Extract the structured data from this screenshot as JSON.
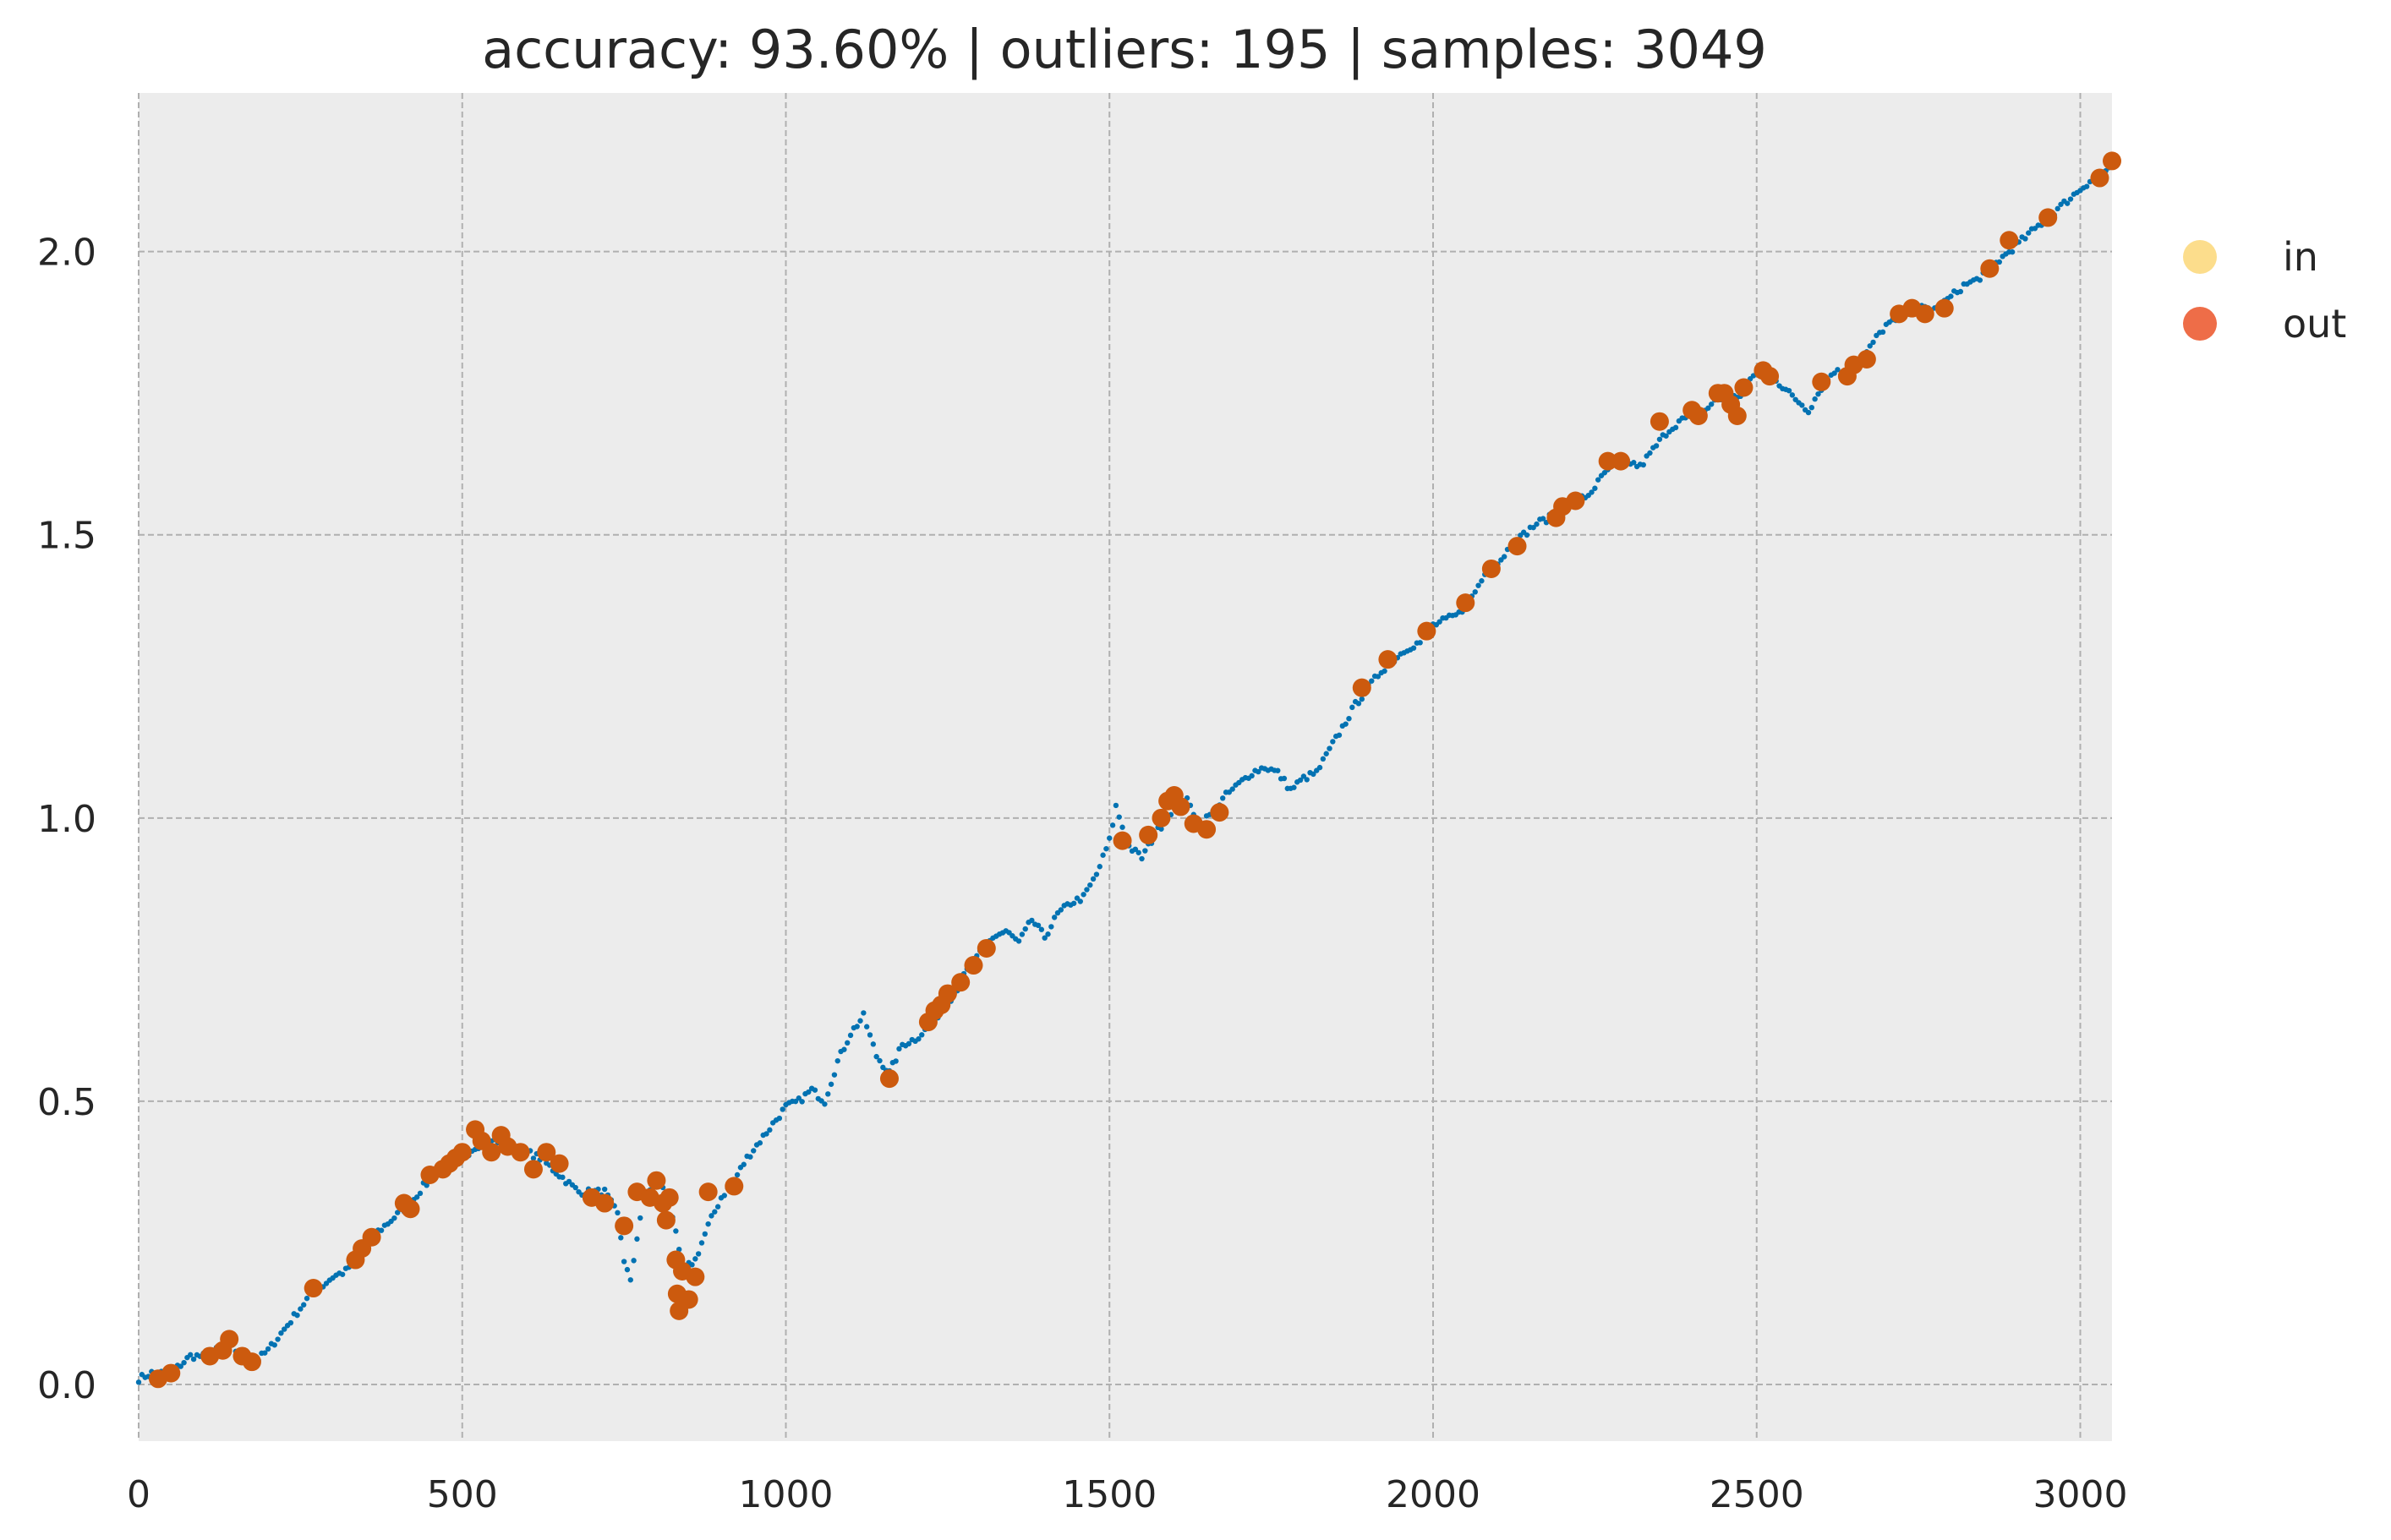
{
  "chart_data": {
    "type": "scatter",
    "title": "accuracy: 93.60% | outliers: 195 | samples: 3049",
    "xlabel": "",
    "ylabel": "",
    "xlim": [
      0,
      3049
    ],
    "ylim": [
      -0.1,
      2.28
    ],
    "x_ticks": [
      0,
      500,
      1000,
      1500,
      2000,
      2500,
      3000
    ],
    "y_ticks": [
      0.0,
      0.5,
      1.0,
      1.5,
      2.0
    ],
    "x_tick_labels": [
      "0",
      "500",
      "1000",
      "1500",
      "2000",
      "2500",
      "3000"
    ],
    "y_tick_labels": [
      "0.0",
      "0.5",
      "1.0",
      "1.5",
      "2.0"
    ],
    "grid": true,
    "legend_position": "outside-right-top",
    "series": [
      {
        "name": "in",
        "legend_color": "#fcdd8c",
        "point_color": "#0372b2",
        "marker": "small-dot",
        "points": [
          [
            0,
            0.01
          ],
          [
            20,
            0.02
          ],
          [
            40,
            0.02
          ],
          [
            60,
            0.03
          ],
          [
            80,
            0.05
          ],
          [
            100,
            0.05
          ],
          [
            120,
            0.06
          ],
          [
            140,
            0.07
          ],
          [
            160,
            0.05
          ],
          [
            180,
            0.04
          ],
          [
            200,
            0.06
          ],
          [
            220,
            0.09
          ],
          [
            240,
            0.12
          ],
          [
            260,
            0.15
          ],
          [
            280,
            0.17
          ],
          [
            300,
            0.19
          ],
          [
            320,
            0.2
          ],
          [
            340,
            0.23
          ],
          [
            360,
            0.26
          ],
          [
            380,
            0.28
          ],
          [
            400,
            0.3
          ],
          [
            420,
            0.32
          ],
          [
            440,
            0.35
          ],
          [
            460,
            0.37
          ],
          [
            480,
            0.38
          ],
          [
            500,
            0.4
          ],
          [
            520,
            0.42
          ],
          [
            540,
            0.43
          ],
          [
            560,
            0.43
          ],
          [
            580,
            0.42
          ],
          [
            600,
            0.41
          ],
          [
            620,
            0.4
          ],
          [
            640,
            0.38
          ],
          [
            660,
            0.36
          ],
          [
            680,
            0.34
          ],
          [
            700,
            0.34
          ],
          [
            720,
            0.34
          ],
          [
            740,
            0.3
          ],
          [
            750,
            0.22
          ],
          [
            760,
            0.18
          ],
          [
            770,
            0.26
          ],
          [
            780,
            0.33
          ],
          [
            800,
            0.36
          ],
          [
            820,
            0.33
          ],
          [
            840,
            0.2
          ],
          [
            860,
            0.22
          ],
          [
            880,
            0.28
          ],
          [
            900,
            0.33
          ],
          [
            920,
            0.36
          ],
          [
            940,
            0.4
          ],
          [
            960,
            0.43
          ],
          [
            980,
            0.46
          ],
          [
            1000,
            0.49
          ],
          [
            1020,
            0.5
          ],
          [
            1040,
            0.52
          ],
          [
            1060,
            0.5
          ],
          [
            1080,
            0.57
          ],
          [
            1100,
            0.62
          ],
          [
            1120,
            0.65
          ],
          [
            1140,
            0.58
          ],
          [
            1160,
            0.55
          ],
          [
            1180,
            0.6
          ],
          [
            1200,
            0.61
          ],
          [
            1220,
            0.63
          ],
          [
            1240,
            0.66
          ],
          [
            1260,
            0.69
          ],
          [
            1280,
            0.73
          ],
          [
            1300,
            0.76
          ],
          [
            1320,
            0.79
          ],
          [
            1340,
            0.8
          ],
          [
            1360,
            0.78
          ],
          [
            1380,
            0.82
          ],
          [
            1400,
            0.79
          ],
          [
            1420,
            0.83
          ],
          [
            1440,
            0.85
          ],
          [
            1460,
            0.86
          ],
          [
            1480,
            0.9
          ],
          [
            1500,
            0.96
          ],
          [
            1510,
            1.02
          ],
          [
            1530,
            0.95
          ],
          [
            1550,
            0.93
          ],
          [
            1570,
            0.97
          ],
          [
            1600,
            1.02
          ],
          [
            1620,
            1.03
          ],
          [
            1640,
            0.99
          ],
          [
            1660,
            1.01
          ],
          [
            1680,
            1.04
          ],
          [
            1700,
            1.06
          ],
          [
            1720,
            1.08
          ],
          [
            1740,
            1.09
          ],
          [
            1760,
            1.08
          ],
          [
            1780,
            1.05
          ],
          [
            1800,
            1.07
          ],
          [
            1820,
            1.08
          ],
          [
            1840,
            1.12
          ],
          [
            1860,
            1.16
          ],
          [
            1880,
            1.2
          ],
          [
            1900,
            1.23
          ],
          [
            1920,
            1.26
          ],
          [
            1940,
            1.28
          ],
          [
            1960,
            1.3
          ],
          [
            1980,
            1.31
          ],
          [
            2000,
            1.34
          ],
          [
            2020,
            1.35
          ],
          [
            2040,
            1.36
          ],
          [
            2060,
            1.39
          ],
          [
            2080,
            1.43
          ],
          [
            2100,
            1.45
          ],
          [
            2120,
            1.48
          ],
          [
            2140,
            1.5
          ],
          [
            2160,
            1.52
          ],
          [
            2180,
            1.53
          ],
          [
            2200,
            1.54
          ],
          [
            2220,
            1.56
          ],
          [
            2240,
            1.57
          ],
          [
            2260,
            1.6
          ],
          [
            2280,
            1.63
          ],
          [
            2300,
            1.63
          ],
          [
            2320,
            1.62
          ],
          [
            2340,
            1.65
          ],
          [
            2360,
            1.68
          ],
          [
            2380,
            1.7
          ],
          [
            2400,
            1.71
          ],
          [
            2420,
            1.72
          ],
          [
            2440,
            1.74
          ],
          [
            2460,
            1.74
          ],
          [
            2480,
            1.75
          ],
          [
            2500,
            1.79
          ],
          [
            2520,
            1.79
          ],
          [
            2540,
            1.76
          ],
          [
            2560,
            1.74
          ],
          [
            2580,
            1.72
          ],
          [
            2600,
            1.76
          ],
          [
            2620,
            1.79
          ],
          [
            2640,
            1.78
          ],
          [
            2660,
            1.8
          ],
          [
            2680,
            1.84
          ],
          [
            2700,
            1.87
          ],
          [
            2720,
            1.88
          ],
          [
            2740,
            1.9
          ],
          [
            2760,
            1.9
          ],
          [
            2780,
            1.9
          ],
          [
            2800,
            1.92
          ],
          [
            2820,
            1.94
          ],
          [
            2840,
            1.95
          ],
          [
            2860,
            1.97
          ],
          [
            2880,
            1.99
          ],
          [
            2900,
            2.01
          ],
          [
            2920,
            2.03
          ],
          [
            2940,
            2.05
          ],
          [
            2960,
            2.07
          ],
          [
            2980,
            2.09
          ],
          [
            3000,
            2.11
          ],
          [
            3020,
            2.13
          ],
          [
            3049,
            2.15
          ]
        ]
      },
      {
        "name": "out",
        "legend_color": "#ee6d48",
        "point_color": "#cc5a0e",
        "marker": "large-dot",
        "points": [
          [
            30,
            0.01
          ],
          [
            50,
            0.02
          ],
          [
            110,
            0.05
          ],
          [
            130,
            0.06
          ],
          [
            140,
            0.08
          ],
          [
            160,
            0.05
          ],
          [
            175,
            0.04
          ],
          [
            270,
            0.17
          ],
          [
            335,
            0.22
          ],
          [
            345,
            0.24
          ],
          [
            360,
            0.26
          ],
          [
            410,
            0.32
          ],
          [
            420,
            0.31
          ],
          [
            450,
            0.37
          ],
          [
            470,
            0.38
          ],
          [
            480,
            0.39
          ],
          [
            490,
            0.4
          ],
          [
            500,
            0.41
          ],
          [
            520,
            0.45
          ],
          [
            530,
            0.43
          ],
          [
            545,
            0.41
          ],
          [
            560,
            0.44
          ],
          [
            570,
            0.42
          ],
          [
            590,
            0.41
          ],
          [
            610,
            0.38
          ],
          [
            630,
            0.41
          ],
          [
            650,
            0.39
          ],
          [
            700,
            0.33
          ],
          [
            720,
            0.32
          ],
          [
            750,
            0.28
          ],
          [
            770,
            0.34
          ],
          [
            790,
            0.33
          ],
          [
            800,
            0.36
          ],
          [
            810,
            0.32
          ],
          [
            815,
            0.29
          ],
          [
            820,
            0.33
          ],
          [
            830,
            0.22
          ],
          [
            832,
            0.16
          ],
          [
            835,
            0.13
          ],
          [
            840,
            0.2
          ],
          [
            850,
            0.15
          ],
          [
            860,
            0.19
          ],
          [
            880,
            0.34
          ],
          [
            920,
            0.35
          ],
          [
            1160,
            0.54
          ],
          [
            1220,
            0.64
          ],
          [
            1230,
            0.66
          ],
          [
            1240,
            0.67
          ],
          [
            1250,
            0.69
          ],
          [
            1270,
            0.71
          ],
          [
            1290,
            0.74
          ],
          [
            1310,
            0.77
          ],
          [
            1520,
            0.96
          ],
          [
            1560,
            0.97
          ],
          [
            1580,
            1.0
          ],
          [
            1590,
            1.03
          ],
          [
            1600,
            1.04
          ],
          [
            1610,
            1.02
          ],
          [
            1630,
            0.99
          ],
          [
            1650,
            0.98
          ],
          [
            1670,
            1.01
          ],
          [
            1890,
            1.23
          ],
          [
            1930,
            1.28
          ],
          [
            1990,
            1.33
          ],
          [
            2050,
            1.38
          ],
          [
            2090,
            1.44
          ],
          [
            2130,
            1.48
          ],
          [
            2190,
            1.53
          ],
          [
            2200,
            1.55
          ],
          [
            2220,
            1.56
          ],
          [
            2270,
            1.63
          ],
          [
            2290,
            1.63
          ],
          [
            2350,
            1.7
          ],
          [
            2400,
            1.72
          ],
          [
            2410,
            1.71
          ],
          [
            2440,
            1.75
          ],
          [
            2450,
            1.75
          ],
          [
            2460,
            1.73
          ],
          [
            2470,
            1.71
          ],
          [
            2480,
            1.76
          ],
          [
            2510,
            1.79
          ],
          [
            2520,
            1.78
          ],
          [
            2600,
            1.77
          ],
          [
            2640,
            1.78
          ],
          [
            2650,
            1.8
          ],
          [
            2670,
            1.81
          ],
          [
            2720,
            1.89
          ],
          [
            2740,
            1.9
          ],
          [
            2760,
            1.89
          ],
          [
            2790,
            1.9
          ],
          [
            2860,
            1.97
          ],
          [
            2890,
            2.02
          ],
          [
            2950,
            2.06
          ],
          [
            3030,
            2.13
          ],
          [
            3049,
            2.16
          ]
        ]
      }
    ]
  }
}
